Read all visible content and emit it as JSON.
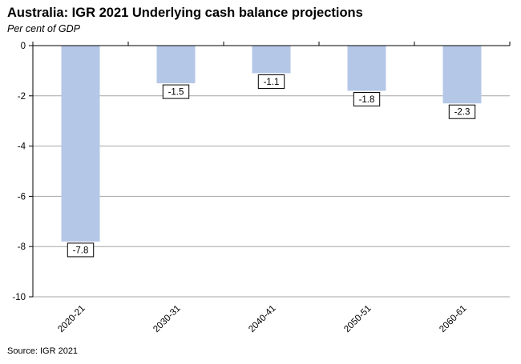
{
  "title": "Australia: IGR 2021 Underlying cash balance projections",
  "subtitle": "Per cent of GDP",
  "source": "Source: IGR 2021",
  "colors": {
    "bar": "#b4c7e7",
    "grid": "#a6a6a6",
    "axis": "#000000"
  },
  "chart_data": {
    "type": "bar",
    "title": "Australia: IGR 2021 Underlying cash balance projections",
    "ylabel": "Per cent of GDP",
    "xlabel": "",
    "categories": [
      "2020-21",
      "2030-31",
      "2040-41",
      "2050-51",
      "2060-61"
    ],
    "values": [
      -7.8,
      -1.5,
      -1.1,
      -1.8,
      -2.3
    ],
    "data_labels": [
      "-7.8",
      "-1.5",
      "-1.1",
      "-1.8",
      "-2.3"
    ],
    "ylim": [
      -10,
      0
    ],
    "yticks": [
      0,
      -2,
      -4,
      -6,
      -8,
      -10
    ],
    "ytick_labels": [
      "0",
      "-2",
      "-4",
      "-6",
      "-8",
      "-10"
    ],
    "grid": true,
    "legend": "none"
  }
}
